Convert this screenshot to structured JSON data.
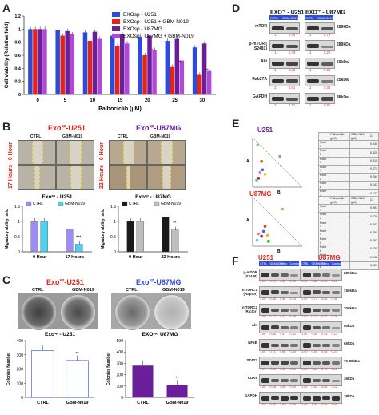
{
  "panel_labels": {
    "a": "A",
    "b": "B",
    "c": "C",
    "d": "D",
    "e": "E",
    "f": "F"
  },
  "colors": {
    "blue": "#2e4bd8",
    "red": "#e0241b",
    "purple": "#6a1e9a",
    "violet": "#b04ad6",
    "grey": "#bfbfbf",
    "black": "#1a1a1a",
    "lavender": "#9b8ef0",
    "cyan": "#4fd0f0"
  },
  "chart_data": [
    {
      "type": "bar",
      "id": "A",
      "ylabel": "Cell viability (Relative fold)",
      "xlabel": "Palbociclib (μM)",
      "categories": [
        "0",
        "5",
        "10",
        "15",
        "20",
        "25",
        "30"
      ],
      "ylim": [
        0,
        1.2
      ],
      "yticks": [
        "0",
        "0.2",
        "0.4",
        "0.6",
        "0.8",
        "1",
        "1.2"
      ],
      "series": [
        {
          "name": "EXOsp - U251",
          "values": [
            1.0,
            0.98,
            0.95,
            0.9,
            0.88,
            0.82,
            0.72
          ]
        },
        {
          "name": "EXOsp - U251 + GBM-N019",
          "values": [
            1.0,
            0.9,
            0.82,
            0.74,
            0.6,
            0.42,
            0.3
          ]
        },
        {
          "name": "EXOsp - U87MG",
          "values": [
            1.0,
            0.97,
            0.96,
            0.92,
            0.9,
            0.85,
            0.78
          ]
        },
        {
          "name": "EXOsp - U87MG + GBM-N019",
          "values": [
            1.0,
            0.92,
            0.85,
            0.78,
            0.68,
            0.52,
            0.36
          ]
        }
      ],
      "sig": [
        "",
        "",
        "",
        "",
        "*",
        "**",
        "**"
      ]
    },
    {
      "type": "bar",
      "id": "B1",
      "title": "Exo",
      "title_sup": "sp",
      "title_rest": " - U251",
      "ylabel": "Migratory ability ratio",
      "categories": [
        "0 Hour",
        "17 Hours"
      ],
      "yticks": [
        "0",
        "0.5",
        "1",
        "1.5"
      ],
      "ylim": [
        0,
        1.5
      ],
      "series": [
        {
          "name": "CTRL",
          "values": [
            1.0,
            0.75
          ]
        },
        {
          "name": "GBM-N019",
          "values": [
            1.0,
            0.25
          ]
        }
      ],
      "sig": [
        "",
        "***"
      ]
    },
    {
      "type": "bar",
      "id": "B2",
      "title": "Exo",
      "title_sup": "sp",
      "title_rest": " - U87MG",
      "ylabel": "Migratory ability ratio",
      "categories": [
        "0 Hour",
        "22 Hours"
      ],
      "yticks": [
        "0",
        "0.5",
        "1",
        "1.5"
      ],
      "ylim": [
        0,
        1.5
      ],
      "series": [
        {
          "name": "CTRL",
          "values": [
            1.0,
            1.15
          ]
        },
        {
          "name": "GBM-N019",
          "values": [
            1.0,
            0.72
          ]
        }
      ],
      "sig": [
        "",
        "**"
      ]
    },
    {
      "type": "bar",
      "id": "C1",
      "title": "Exo",
      "title_sup": "sp",
      "title_rest": " - U251",
      "ylabel": "Colonies Number",
      "categories": [
        "CTRL",
        "GBM-N019"
      ],
      "yticks": [
        "0",
        "100",
        "200",
        "300",
        "400"
      ],
      "ylim": [
        0,
        400
      ],
      "values": [
        330,
        260
      ],
      "sig": [
        "",
        "**"
      ]
    },
    {
      "type": "bar",
      "id": "C2",
      "title": "EXO",
      "title_sup": "sp",
      "title_rest": "- U87MG",
      "ylabel": "Colonies Number",
      "categories": [
        "CTRL",
        "GBM-N019"
      ],
      "yticks": [
        "0",
        "100",
        "200",
        "300",
        "400",
        "500"
      ],
      "ylim": [
        0,
        500
      ],
      "values": [
        280,
        110
      ],
      "sig": [
        "",
        "**"
      ]
    }
  ],
  "panel_b": {
    "top_u251": "Exo",
    "top_u251_sup": "sp",
    "top_u251_rest": "-U251",
    "top_u87": "Exo",
    "top_u87_sup": "sp",
    "top_u87_rest": "-U87MG",
    "ctrl": "CTRL",
    "gbm": "GBM-N019",
    "row1": "0 Hour",
    "row2_u251": "17 Hours",
    "row2_u87": "22 Hours"
  },
  "panel_c": {
    "top_u251": "Exo",
    "top_u251_sup": "sp",
    "top_u251_rest": "-U251",
    "top_u87": "Exo",
    "top_u87_sup": "sp",
    "top_u87_rest": "-U87MG",
    "ctrl": "CTRL",
    "gbm": "GBM-N019"
  },
  "panel_d": {
    "header_u251": "EXO",
    "header_sup": "sp",
    "header_u251_rest": " - U251",
    "header_u87_rest": " - U87MG",
    "ctrl": "CTRL",
    "gbm": "GBM-N019",
    "rows": [
      {
        "name": "mTOR",
        "mw": "289kDa",
        "u251": [
          "1",
          "0.74"
        ],
        "u87": [
          "1",
          "0.72"
        ]
      },
      {
        "name": "p-mTOR ( S2481)",
        "mw": "289kDa",
        "u251": [
          "1",
          "0.73"
        ],
        "u87": [
          "1",
          "0.22"
        ]
      },
      {
        "name": "Akt",
        "mw": "60kDa",
        "u251": [
          "1",
          "0.82"
        ],
        "u87": [
          "1",
          "0.60"
        ]
      },
      {
        "name": "Rab27A",
        "mw": "25kDa",
        "u251": [
          "1",
          "0.81"
        ],
        "u87": [
          "1",
          "0.35"
        ]
      },
      {
        "name": "GAPDH",
        "mw": "38kDa",
        "u251": [
          "1",
          "0.71"
        ],
        "u87": [
          "1",
          "0.81"
        ]
      }
    ]
  },
  "panel_e": {
    "u251": "U251",
    "u87": "U87MG",
    "table_header": [
      "",
      "Palbociclib (μM)",
      "GBM-N019 (μM)",
      "CI"
    ],
    "u251_rows": [
      [
        "Point 1",
        "",
        "",
        "0.940"
      ],
      [
        "Point 2",
        "",
        "",
        "0.425"
      ],
      [
        "Point 3",
        "",
        "",
        "0.310"
      ],
      [
        "Point 4",
        "",
        "",
        "0.271"
      ],
      [
        "Point 5",
        "",
        "",
        "0.254"
      ],
      [
        "Point 6",
        "",
        "",
        "0.241"
      ],
      [
        "Point 7",
        "",
        "",
        "0.122"
      ],
      [
        "Point 8",
        "",
        "",
        "0.096"
      ]
    ],
    "u87_rows": [
      [
        "Point 1",
        "",
        "",
        "0.993"
      ],
      [
        "Point 2",
        "",
        "",
        "0.470"
      ],
      [
        "Point 3",
        "",
        "",
        "0.401"
      ],
      [
        "Point 4",
        "",
        "",
        "0.355"
      ],
      [
        "Point 5",
        "",
        "",
        "0.262"
      ],
      [
        "Point 6",
        "",
        "",
        "0.230"
      ],
      [
        "Point 7",
        "",
        "",
        "0.192"
      ],
      [
        "Point 8",
        "",
        "",
        "0.101"
      ]
    ],
    "axis_a": "A",
    "axis_b": "B"
  },
  "panel_f": {
    "header_u251": "U251",
    "header_u87": "U87MG",
    "lanes": [
      "CTRL",
      "GBMN019",
      "Palbo",
      "Combo"
    ],
    "rows": [
      {
        "name": "p-mTOR (S2448)",
        "mw": "289kDa",
        "u251": [
          "1.00",
          "0.73",
          "0.55",
          "0.22"
        ],
        "u87": [
          "1.00",
          "0.61",
          "0.42",
          "0.13"
        ]
      },
      {
        "name": "mTORC1 (Raptor)",
        "mw": "150kDa",
        "u251": [
          "1.00",
          "0.88",
          "0.58",
          "0.24"
        ],
        "u87": [
          "1.00",
          "0.77",
          "0.65",
          "0.36"
        ]
      },
      {
        "name": "mTORC2 (Rictor)",
        "mw": "200kDa",
        "u251": [
          "1.00",
          "0.72",
          "0.61",
          "0.28"
        ],
        "u87": [
          "1.00",
          "0.74",
          "0.52",
          "0.29"
        ]
      },
      {
        "name": "Akt",
        "mw": "60kDa",
        "u251": [
          "1.00",
          "0.88",
          "0.57",
          "0.33"
        ],
        "u87": [
          "1.00",
          "0.69",
          "0.45",
          "0.13"
        ]
      },
      {
        "name": "NFkB",
        "mw": "65kDa",
        "u251": [
          "1.00",
          "0.71",
          "0.66",
          "0.44"
        ],
        "u87": [
          "1.00",
          "0.59",
          "0.58",
          "0.27"
        ]
      },
      {
        "name": "STAT3",
        "mw": "79-86kDa",
        "u251": [
          "1.00",
          "0.83",
          "0.85",
          "0.59"
        ],
        "u87": [
          "1.00",
          "0.64",
          "0.71",
          "0.42"
        ]
      },
      {
        "name": "CDK6",
        "mw": "36kDa",
        "u251": [
          "1.00",
          "0.68",
          "0.60",
          "0.39"
        ],
        "u87": [
          "1.00",
          "0.62",
          "0.66",
          "0.22"
        ]
      },
      {
        "name": "GAPDH",
        "mw": "38kDa",
        "u251": [
          "1.00",
          "0.99",
          "1.00",
          "0.99"
        ],
        "u87": [
          "1.00",
          "1.00",
          "0.98",
          "1.00"
        ]
      }
    ]
  }
}
